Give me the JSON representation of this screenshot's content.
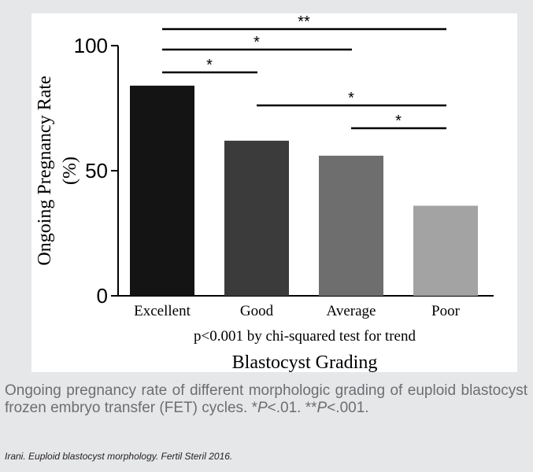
{
  "chart_data": {
    "type": "bar",
    "categories": [
      "Excellent",
      "Good",
      "Average",
      "Poor"
    ],
    "values": [
      84,
      62,
      56,
      36
    ],
    "ylabel_line1": "Ongoing Pregnancy Rate",
    "ylabel_line2": "(%)",
    "xlabel": "Blastocyst Grading",
    "yticks": [
      0,
      50,
      100
    ],
    "ylim": [
      0,
      100
    ],
    "note": "p<0.001 by chi-squared test for trend",
    "bar_colors": [
      "#141414",
      "#3b3b3b",
      "#6e6e6e",
      "#a3a3a3"
    ],
    "significance": [
      {
        "from": "Excellent",
        "to": "Poor",
        "label": "**"
      },
      {
        "from": "Excellent",
        "to": "Average",
        "label": "*"
      },
      {
        "from": "Excellent",
        "to": "Good",
        "label": "*"
      },
      {
        "from": "Good",
        "to": "Poor",
        "label": "*"
      },
      {
        "from": "Average",
        "to": "Poor",
        "label": "*"
      }
    ]
  },
  "caption": {
    "text1": "Ongoing pregnancy rate of different morphologic grading of euploid blastocyst frozen embryo transfer (FET) cycles. *",
    "p1": "P",
    "text2": "<.01. **",
    "p2": "P",
    "text3": "<.001."
  },
  "source": "Irani. Euploid blastocyst morphology. Fertil Steril 2016."
}
